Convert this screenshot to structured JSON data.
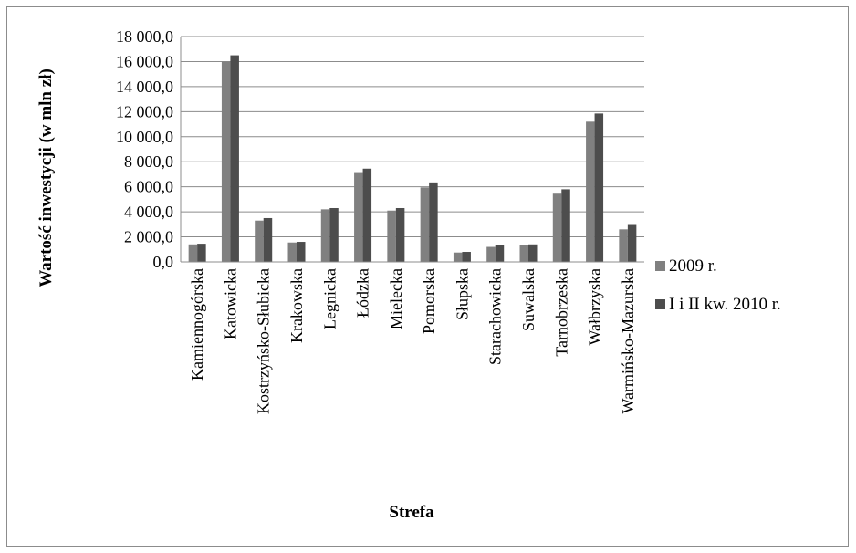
{
  "chart_data": {
    "type": "bar",
    "title": "",
    "xlabel": "Strefa",
    "ylabel": "Wartość inwestycji (w mln zł)",
    "ylim": [
      0,
      18000
    ],
    "yticks": [
      "0,0",
      "2 000,0",
      "4 000,0",
      "6 000,0",
      "8 000,0",
      "10 000,0",
      "12 000,0",
      "14 000,0",
      "16 000,0",
      "18 000,0"
    ],
    "grid": true,
    "legend_position": "right",
    "categories": [
      "Kamiennogórska",
      "Katowicka",
      "Kostrzyńsko-Słubicka",
      "Krakowska",
      "Legnicka",
      "Łódzka",
      "Mielecka",
      "Pomorska",
      "Słupska",
      "Starachowicka",
      "Suwalska",
      "Tarnobrzeska",
      "Wałbrzyska",
      "Warmińsko-Mazurska"
    ],
    "series": [
      {
        "name": "2009 r.",
        "color": "#808080",
        "values": [
          1400,
          16000,
          3300,
          1550,
          4200,
          7100,
          4100,
          5950,
          750,
          1200,
          1350,
          5450,
          11200,
          2600
        ]
      },
      {
        "name": "I i II kw. 2010 r.",
        "color": "#4d4d4d",
        "values": [
          1450,
          16500,
          3500,
          1600,
          4300,
          7450,
          4300,
          6350,
          800,
          1350,
          1400,
          5800,
          11850,
          2950
        ]
      }
    ]
  }
}
